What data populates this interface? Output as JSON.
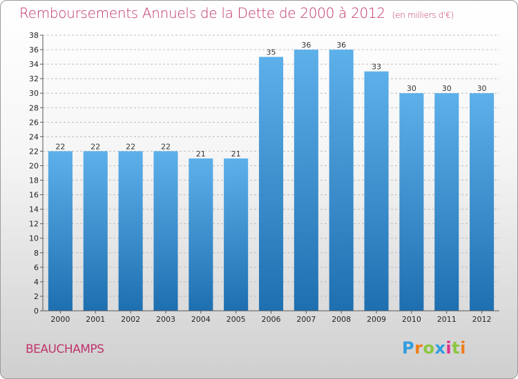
{
  "header": {
    "title": "Remboursements Annuels de la Dette de 2000 à 2012",
    "unit": "(en milliers d'€)"
  },
  "commune": "BEAUCHAMPS",
  "logo": {
    "letters": [
      "P",
      "r",
      "o",
      "x",
      "i",
      "t",
      "i"
    ]
  },
  "colors": {
    "title": "#c0346e",
    "bar_top": "#5db0ea",
    "bar_bottom": "#1e6fb0",
    "grid": "#bbbbbb"
  },
  "chart_data": {
    "type": "bar",
    "title": "Remboursements Annuels de la Dette de 2000 à 2012",
    "subtitle": "(en milliers d'€)",
    "xlabel": "",
    "ylabel": "",
    "categories": [
      "2000",
      "2001",
      "2002",
      "2003",
      "2004",
      "2005",
      "2006",
      "2007",
      "2008",
      "2009",
      "2010",
      "2011",
      "2012"
    ],
    "values": [
      22,
      22,
      22,
      22,
      21,
      21,
      35,
      36,
      36,
      33,
      30,
      30,
      30
    ],
    "ylim": [
      0,
      38
    ],
    "yticks": [
      0,
      2,
      4,
      6,
      8,
      10,
      12,
      14,
      16,
      18,
      20,
      22,
      24,
      26,
      28,
      30,
      32,
      34,
      36,
      38
    ],
    "grid": true,
    "legend": "none"
  }
}
